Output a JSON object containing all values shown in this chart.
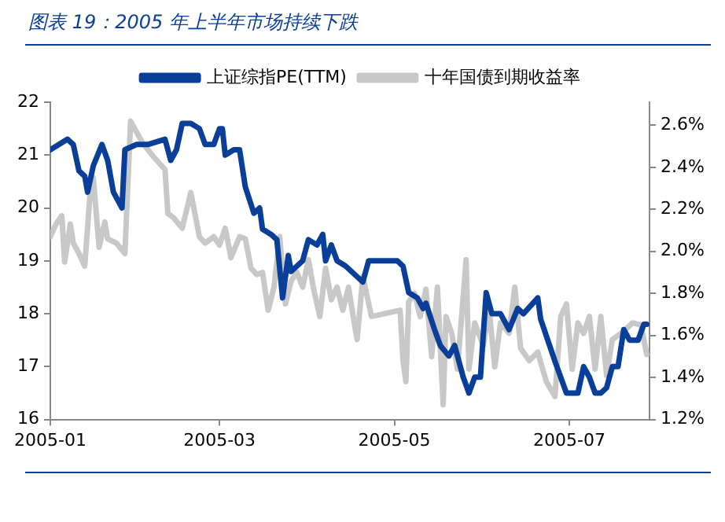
{
  "chart_data": {
    "type": "line",
    "title": "图表 19：2005 年上半年市场持续下跌",
    "legend": "top",
    "marker": "none",
    "line_style": "solid",
    "grid": false,
    "xlim": [
      "2005-01-01",
      "2005-07-29"
    ],
    "xticks": [
      {
        "value": "2005-01-01",
        "label": "2005-01"
      },
      {
        "value": "2005-03-01",
        "label": "2005-03"
      },
      {
        "value": "2005-05-01",
        "label": "2005-05"
      },
      {
        "value": "2005-07-01",
        "label": "2005-07"
      }
    ],
    "ylim": [
      16,
      22
    ],
    "yticks": [
      16,
      17,
      18,
      19,
      20,
      21,
      22
    ],
    "y2lim": [
      1.2,
      2.71
    ],
    "y2ticks": [
      {
        "value": 1.2,
        "label": "1.2%"
      },
      {
        "value": 1.4,
        "label": "1.4%"
      },
      {
        "value": 1.6,
        "label": "1.6%"
      },
      {
        "value": 1.8,
        "label": "1.8%"
      },
      {
        "value": 2.0,
        "label": "2.0%"
      },
      {
        "value": 2.2,
        "label": "2.2%"
      },
      {
        "value": 2.4,
        "label": "2.4%"
      },
      {
        "value": 2.6,
        "label": "2.6%"
      }
    ],
    "series": [
      {
        "name": "上证综指PE(TTM)",
        "color": "#0a3f99",
        "x": [
          "2005-01-01",
          "2005-01-04",
          "2005-01-07",
          "2005-01-09",
          "2005-01-11",
          "2005-01-13",
          "2005-01-14",
          "2005-01-16",
          "2005-01-19",
          "2005-01-21",
          "2005-01-23",
          "2005-01-26",
          "2005-01-27",
          "2005-01-31",
          "2005-02-04",
          "2005-02-10",
          "2005-02-12",
          "2005-02-14",
          "2005-02-16",
          "2005-02-19",
          "2005-02-22",
          "2005-02-24",
          "2005-02-27",
          "2005-03-01",
          "2005-03-02",
          "2005-03-03",
          "2005-03-06",
          "2005-03-08",
          "2005-03-10",
          "2005-03-13",
          "2005-03-15",
          "2005-03-16",
          "2005-03-19",
          "2005-03-21",
          "2005-03-23",
          "2005-03-25",
          "2005-03-26",
          "2005-03-30",
          "2005-04-01",
          "2005-04-04",
          "2005-04-06",
          "2005-04-07",
          "2005-04-09",
          "2005-04-11",
          "2005-04-14",
          "2005-04-18",
          "2005-04-20",
          "2005-04-22",
          "2005-05-02",
          "2005-05-04",
          "2005-05-06",
          "2005-05-09",
          "2005-05-11",
          "2005-05-12",
          "2005-05-15",
          "2005-05-17",
          "2005-05-20",
          "2005-05-22",
          "2005-05-25",
          "2005-05-27",
          "2005-05-29",
          "2005-05-31",
          "2005-06-02",
          "2005-06-04",
          "2005-06-07",
          "2005-06-10",
          "2005-06-13",
          "2005-06-15",
          "2005-06-20",
          "2005-06-21",
          "2005-06-26",
          "2005-06-30",
          "2005-07-04",
          "2005-07-06",
          "2005-07-08",
          "2005-07-10",
          "2005-07-12",
          "2005-07-14",
          "2005-07-16",
          "2005-07-18",
          "2005-07-20",
          "2005-07-22",
          "2005-07-25",
          "2005-07-27",
          "2005-07-28"
        ],
        "values": [
          21.1,
          21.2,
          21.3,
          21.2,
          20.7,
          20.6,
          20.3,
          20.8,
          21.2,
          20.9,
          20.3,
          20.0,
          21.1,
          21.2,
          21.2,
          21.3,
          20.9,
          21.1,
          21.6,
          21.6,
          21.5,
          21.2,
          21.2,
          21.5,
          21.5,
          21.0,
          21.1,
          21.1,
          20.4,
          19.9,
          20.0,
          19.6,
          19.5,
          19.4,
          18.3,
          19.1,
          18.8,
          19.0,
          19.4,
          19.3,
          19.5,
          19.0,
          19.3,
          19.0,
          18.9,
          18.7,
          18.6,
          19.0,
          19.0,
          18.9,
          18.4,
          18.3,
          18.1,
          18.2,
          17.7,
          17.4,
          17.2,
          17.4,
          16.8,
          16.5,
          16.8,
          16.8,
          18.4,
          18.0,
          18.0,
          17.7,
          18.1,
          18.0,
          18.3,
          17.9,
          17.1,
          16.5,
          16.5,
          17.0,
          16.8,
          16.5,
          16.5,
          16.6,
          17.0,
          17.0,
          17.7,
          17.5,
          17.5,
          17.8,
          17.8
        ]
      },
      {
        "name": "十年国债到期收益率",
        "color": "#c8c8c8",
        "axis": "y2",
        "x": [
          "2005-01-01",
          "2005-01-03",
          "2005-01-05",
          "2005-01-06",
          "2005-01-08",
          "2005-01-09",
          "2005-01-11",
          "2005-01-13",
          "2005-01-15",
          "2005-01-16",
          "2005-01-18",
          "2005-01-20",
          "2005-01-21",
          "2005-01-24",
          "2005-01-27",
          "2005-01-29",
          "2005-02-02",
          "2005-02-06",
          "2005-02-10",
          "2005-02-11",
          "2005-02-13",
          "2005-02-16",
          "2005-02-19",
          "2005-02-22",
          "2005-02-24",
          "2005-02-27",
          "2005-03-01",
          "2005-03-03",
          "2005-03-05",
          "2005-03-08",
          "2005-03-10",
          "2005-03-12",
          "2005-03-14",
          "2005-03-16",
          "2005-03-18",
          "2005-03-20",
          "2005-03-22",
          "2005-03-24",
          "2005-03-26",
          "2005-03-28",
          "2005-03-30",
          "2005-04-01",
          "2005-04-03",
          "2005-04-05",
          "2005-04-07",
          "2005-04-09",
          "2005-04-11",
          "2005-04-13",
          "2005-04-15",
          "2005-04-17",
          "2005-04-18",
          "2005-04-20",
          "2005-04-23",
          "2005-05-03",
          "2005-05-04",
          "2005-05-05",
          "2005-05-06",
          "2005-05-08",
          "2005-05-10",
          "2005-05-12",
          "2005-05-14",
          "2005-05-16",
          "2005-05-18",
          "2005-05-19",
          "2005-05-21",
          "2005-05-23",
          "2005-05-26",
          "2005-05-27",
          "2005-05-29",
          "2005-06-01",
          "2005-06-03",
          "2005-06-05",
          "2005-06-07",
          "2005-06-10",
          "2005-06-12",
          "2005-06-14",
          "2005-06-17",
          "2005-06-20",
          "2005-06-23",
          "2005-06-26",
          "2005-06-28",
          "2005-06-30",
          "2005-07-02",
          "2005-07-04",
          "2005-07-06",
          "2005-07-08",
          "2005-07-10",
          "2005-07-12",
          "2005-07-14",
          "2005-07-16",
          "2005-07-20",
          "2005-07-23",
          "2005-07-26",
          "2005-07-28"
        ],
        "values": [
          2.07,
          2.13,
          2.17,
          1.95,
          2.13,
          2.04,
          1.99,
          1.93,
          2.3,
          2.35,
          2.02,
          2.14,
          2.06,
          2.04,
          1.99,
          2.62,
          2.52,
          2.45,
          2.39,
          2.18,
          2.16,
          2.11,
          2.28,
          2.07,
          2.04,
          2.07,
          2.03,
          2.11,
          1.97,
          2.07,
          2.06,
          1.92,
          1.89,
          1.9,
          1.72,
          1.83,
          2.07,
          1.75,
          1.86,
          1.9,
          1.83,
          1.96,
          1.81,
          1.69,
          1.92,
          1.77,
          1.83,
          1.72,
          1.83,
          1.66,
          1.58,
          1.88,
          1.69,
          1.72,
          1.48,
          1.38,
          1.76,
          1.8,
          1.69,
          1.82,
          1.5,
          1.83,
          1.27,
          1.69,
          1.61,
          1.44,
          1.96,
          1.44,
          1.66,
          1.55,
          1.73,
          1.45,
          1.66,
          1.61,
          1.83,
          1.54,
          1.48,
          1.52,
          1.38,
          1.31,
          1.69,
          1.75,
          1.44,
          1.66,
          1.61,
          1.69,
          1.44,
          1.69,
          1.41,
          1.58,
          1.62,
          1.66,
          1.65,
          1.51
        ]
      }
    ]
  }
}
